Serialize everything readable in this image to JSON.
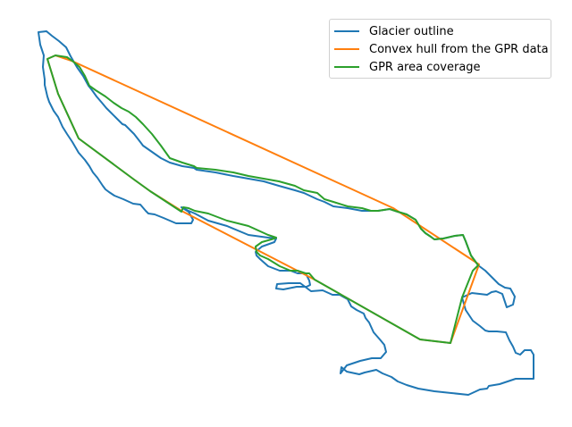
{
  "chart_data": {
    "type": "line",
    "title": "",
    "xlabel": "",
    "ylabel": "",
    "axes_visible": false,
    "grid": false,
    "legend_position": "top-right",
    "series": [
      {
        "name": "Glacier outline",
        "color": "#1f77b4",
        "x": [
          43,
          52,
          58,
          66,
          74,
          79,
          86,
          93,
          99,
          103,
          108,
          114,
          119,
          123,
          129,
          137,
          140,
          150,
          157,
          160,
          170,
          180,
          190,
          204,
          217,
          220,
          241,
          261,
          278,
          295,
          312,
          330,
          340,
          355,
          363,
          373,
          389,
          405,
          415,
          423,
          436,
          445,
          455,
          465,
          471,
          476,
          482,
          486,
          496,
          509,
          518,
          521,
          527,
          535,
          543,
          550,
          558,
          565,
          571,
          576,
          574,
          567,
          562,
          555,
          550,
          545,
          528,
          517,
          521,
          529,
          537,
          543,
          547,
          551,
          556,
          566,
          570,
          574,
          577,
          582,
          587,
          594,
          597,
          597,
          577,
          559,
          547,
          545,
          537,
          524,
          505,
          486,
          468,
          455,
          445,
          438,
          428,
          421,
          408,
          402,
          388,
          382,
          381,
          388,
          403,
          416,
          426,
          432,
          430,
          425,
          418,
          413,
          409,
          407,
          399,
          393,
          389,
          380,
          372,
          361,
          348,
          336,
          323,
          310,
          309,
          317,
          332,
          343,
          347,
          346,
          342,
          333,
          325,
          313,
          300,
          291,
          287,
          286,
          293,
          307,
          309,
          300,
          278,
          254,
          233,
          218,
          211,
          205,
          203,
          211,
          216,
          214,
          197,
          183,
          173,
          166,
          163,
          157,
          149,
          138,
          128,
          122,
          118,
          115,
          109,
          104,
          100,
          95,
          88,
          81,
          75,
          70,
          65,
          60,
          55,
          53,
          50,
          50,
          48,
          49,
          45,
          43
        ],
        "y": [
          36,
          35,
          40,
          46,
          53,
          63,
          75,
          85,
          96,
          101,
          108,
          115,
          121,
          125,
          131,
          139,
          140,
          150,
          159,
          163,
          170,
          177,
          182,
          186,
          188,
          190,
          193,
          197,
          200,
          203,
          208,
          213,
          216,
          223,
          226,
          231,
          233,
          236,
          236,
          236,
          234,
          237,
          240,
          246,
          256,
          261,
          265,
          268,
          267,
          264,
          263,
          270,
          286,
          297,
          303,
          310,
          318,
          322,
          323,
          332,
          341,
          344,
          329,
          326,
          327,
          330,
          328,
          333,
          347,
          359,
          365,
          370,
          371,
          371,
          371,
          372,
          381,
          388,
          395,
          397,
          392,
          392,
          397,
          424,
          424,
          430,
          432,
          435,
          436,
          442,
          440,
          438,
          435,
          431,
          427,
          422,
          418,
          414,
          417,
          419,
          416,
          411,
          418,
          409,
          404,
          401,
          401,
          394,
          386,
          380,
          372,
          361,
          356,
          351,
          347,
          343,
          335,
          330,
          330,
          325,
          326,
          317,
          317,
          318,
          323,
          324,
          321,
          321,
          319,
          314,
          306,
          306,
          303,
          303,
          298,
          290,
          286,
          282,
          276,
          271,
          267,
          266,
          263,
          253,
          247,
          239,
          236,
          233,
          232,
          237,
          246,
          250,
          250,
          244,
          240,
          239,
          236,
          229,
          228,
          223,
          219,
          215,
          212,
          208,
          199,
          193,
          186,
          179,
          171,
          159,
          150,
          142,
          131,
          124,
          114,
          108,
          95,
          89,
          75,
          62,
          50,
          36
        ]
      },
      {
        "name": "Convex hull from the GPR data",
        "color": "#ff7f0e",
        "x": [
          62,
          80,
          440,
          536,
          504,
          470,
          352,
          203,
          168,
          150,
          88,
          65,
          53,
          62
        ],
        "y": [
          62,
          68,
          233,
          296,
          384,
          380,
          313,
          236,
          214,
          201,
          155,
          105,
          66,
          62
        ]
      },
      {
        "name": "GPR area coverage",
        "color": "#2ca02c",
        "x": [
          62,
          75,
          82,
          89,
          95,
          100,
          107,
          118,
          127,
          136,
          144,
          152,
          160,
          170,
          180,
          190,
          204,
          217,
          220,
          241,
          261,
          278,
          295,
          312,
          330,
          340,
          355,
          363,
          373,
          389,
          405,
          415,
          423,
          436,
          445,
          455,
          465,
          471,
          476,
          482,
          486,
          496,
          509,
          518,
          521,
          527,
          535,
          529,
          517,
          504,
          470,
          352,
          346,
          342,
          333,
          325,
          313,
          300,
          291,
          287,
          286,
          293,
          307,
          309,
          300,
          278,
          254,
          233,
          218,
          211,
          205,
          203,
          168,
          150,
          88,
          65,
          53,
          62
        ],
        "y": [
          62,
          64,
          69,
          75,
          85,
          96,
          101,
          108,
          115,
          121,
          125,
          131,
          139,
          150,
          163,
          177,
          182,
          186,
          188,
          190,
          193,
          197,
          200,
          203,
          208,
          213,
          216,
          223,
          226,
          231,
          233,
          236,
          236,
          234,
          237,
          240,
          246,
          256,
          261,
          265,
          268,
          267,
          264,
          263,
          270,
          286,
          297,
          303,
          333,
          384,
          380,
          313,
          306,
          306,
          303,
          303,
          298,
          290,
          286,
          282,
          276,
          271,
          267,
          266,
          263,
          253,
          247,
          239,
          236,
          233,
          232,
          237,
          214,
          201,
          155,
          105,
          66,
          62
        ]
      }
    ]
  }
}
